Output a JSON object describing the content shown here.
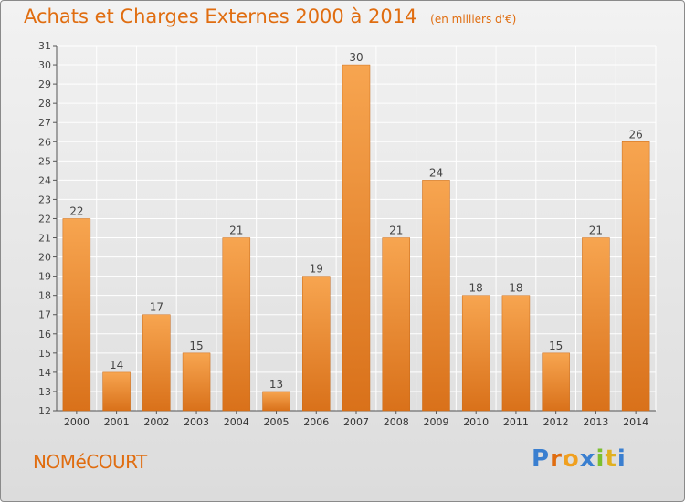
{
  "header": {
    "title": "Achats et Charges Externes 2000 à 2014",
    "subtitle": "(en milliers d'€)"
  },
  "footer": {
    "commune": "NOMéCOURT",
    "brand_letters": [
      "P",
      "r",
      "o",
      "x",
      "i",
      "t",
      "i"
    ],
    "brand_colors": [
      "#3a7fd0",
      "#e06d10",
      "#f0a020",
      "#3a7fd0",
      "#7cbf2f",
      "#e0b020",
      "#3a7fd0"
    ]
  },
  "chart_data": {
    "type": "bar",
    "title": "Achats et Charges Externes 2000 à 2014",
    "subtitle": "(en milliers d'€)",
    "categories": [
      "2000",
      "2001",
      "2002",
      "2003",
      "2004",
      "2005",
      "2006",
      "2007",
      "2008",
      "2009",
      "2010",
      "2011",
      "2012",
      "2013",
      "2014"
    ],
    "values": [
      22,
      14,
      17,
      15,
      21,
      13,
      19,
      30,
      21,
      24,
      18,
      18,
      15,
      21,
      26
    ],
    "ylim": [
      12,
      31
    ],
    "yticks": [
      12,
      13,
      14,
      15,
      16,
      17,
      18,
      19,
      20,
      21,
      22,
      23,
      24,
      25,
      26,
      27,
      28,
      29,
      30,
      31
    ],
    "grid": true,
    "bar_color_top": "#f7a550",
    "bar_color_bottom": "#d9711a",
    "data_labels": true
  }
}
